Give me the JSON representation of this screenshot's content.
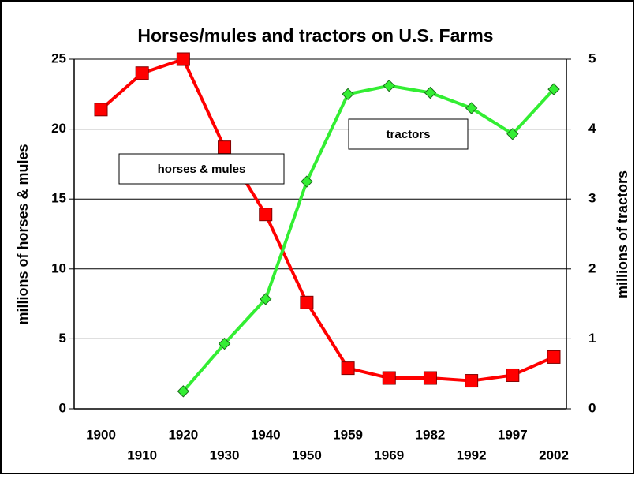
{
  "chart_data": {
    "type": "line",
    "title": "Horses/mules and tractors on U.S. Farms",
    "ylabel": "millions of horses & mules",
    "y2label": "millions of tractors",
    "categories": [
      "1900",
      "1910",
      "1920",
      "1930",
      "1940",
      "1950",
      "1959",
      "1969",
      "1982",
      "1992",
      "1997",
      "2002"
    ],
    "series": [
      {
        "name": "horses & mules",
        "color": "#ff0000",
        "marker": "square",
        "values": [
          21.4,
          24,
          25,
          18.7,
          13.9,
          7.6,
          2.9,
          2.2,
          2.2,
          2.0,
          2.4,
          3.7
        ]
      },
      {
        "name": "tractors",
        "color": "#33ee33",
        "marker": "diamond",
        "axis": "y2",
        "values": [
          null,
          null,
          0.25,
          0.93,
          1.57,
          3.25,
          4.5,
          4.62,
          4.52,
          4.3,
          3.93,
          4.57
        ]
      }
    ],
    "ylim": [
      0,
      25
    ],
    "yticks": [
      0,
      5,
      10,
      15,
      20,
      25
    ],
    "y2lim": [
      0,
      5
    ],
    "y2ticks": [
      0,
      1,
      2,
      3,
      4,
      5
    ],
    "grid": true
  }
}
